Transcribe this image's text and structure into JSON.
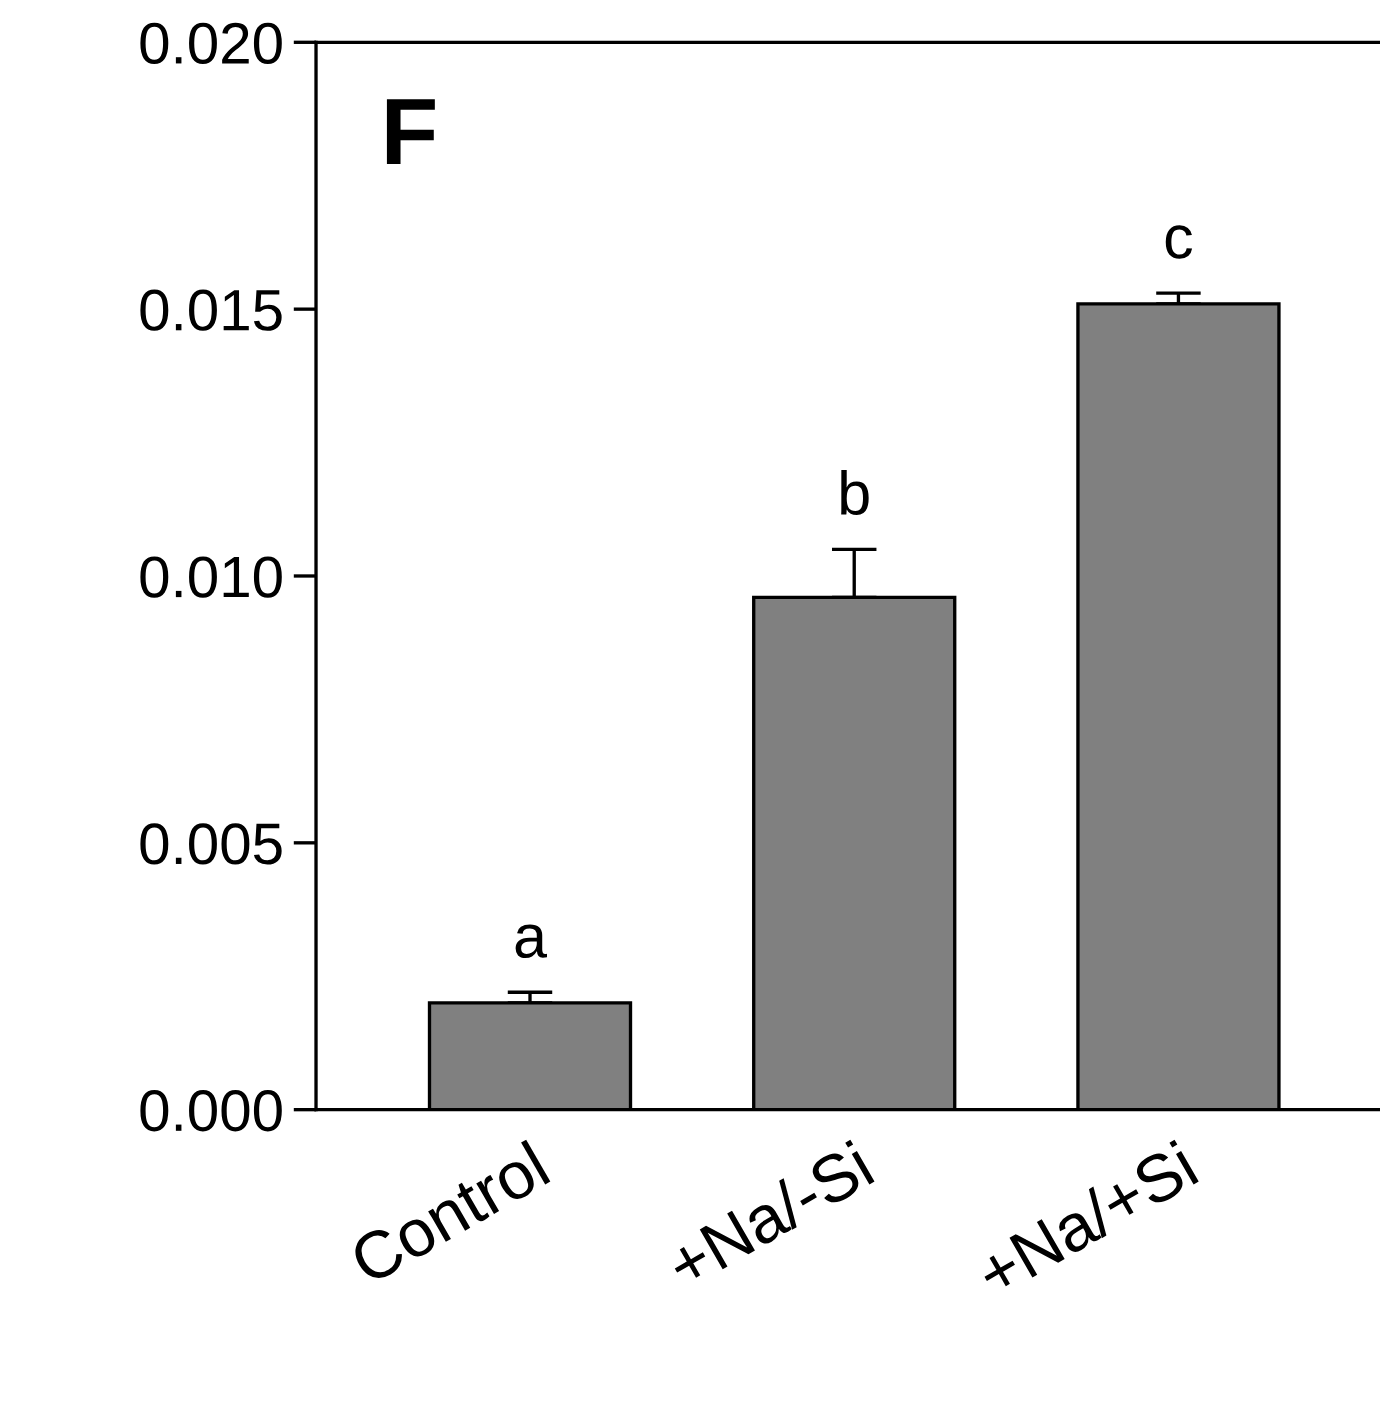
{
  "chart_data": {
    "type": "bar",
    "categories": [
      "Control",
      "+Na/-Si",
      "+Na/+Si"
    ],
    "values": [
      0.002,
      0.0096,
      0.0151
    ],
    "color": "#808080",
    "errors": [
      [
        0.002,
        0.0022
      ],
      [
        0.0096,
        0.0105
      ],
      [
        0.0151,
        0.0153
      ]
    ],
    "ylim": [
      0,
      0.02
    ],
    "yticks": [
      {
        "value": 0,
        "label": "0.000"
      },
      {
        "value": 0.005,
        "label": "0.005"
      },
      {
        "value": 0.01,
        "label": "0.010"
      },
      {
        "value": 0.015,
        "label": "0.015"
      },
      {
        "value": 0.02,
        "label": "0.020"
      }
    ],
    "grid": false,
    "legend": false,
    "annotations": [
      "F",
      {
        "text": "a",
        "x": "Control",
        "y": 0.0022
      },
      {
        "text": "b",
        "x": "+Na/-Si",
        "y": 0.0105
      },
      {
        "text": "c",
        "x": "+Na/+Si",
        "y": 0.0153
      }
    ]
  }
}
